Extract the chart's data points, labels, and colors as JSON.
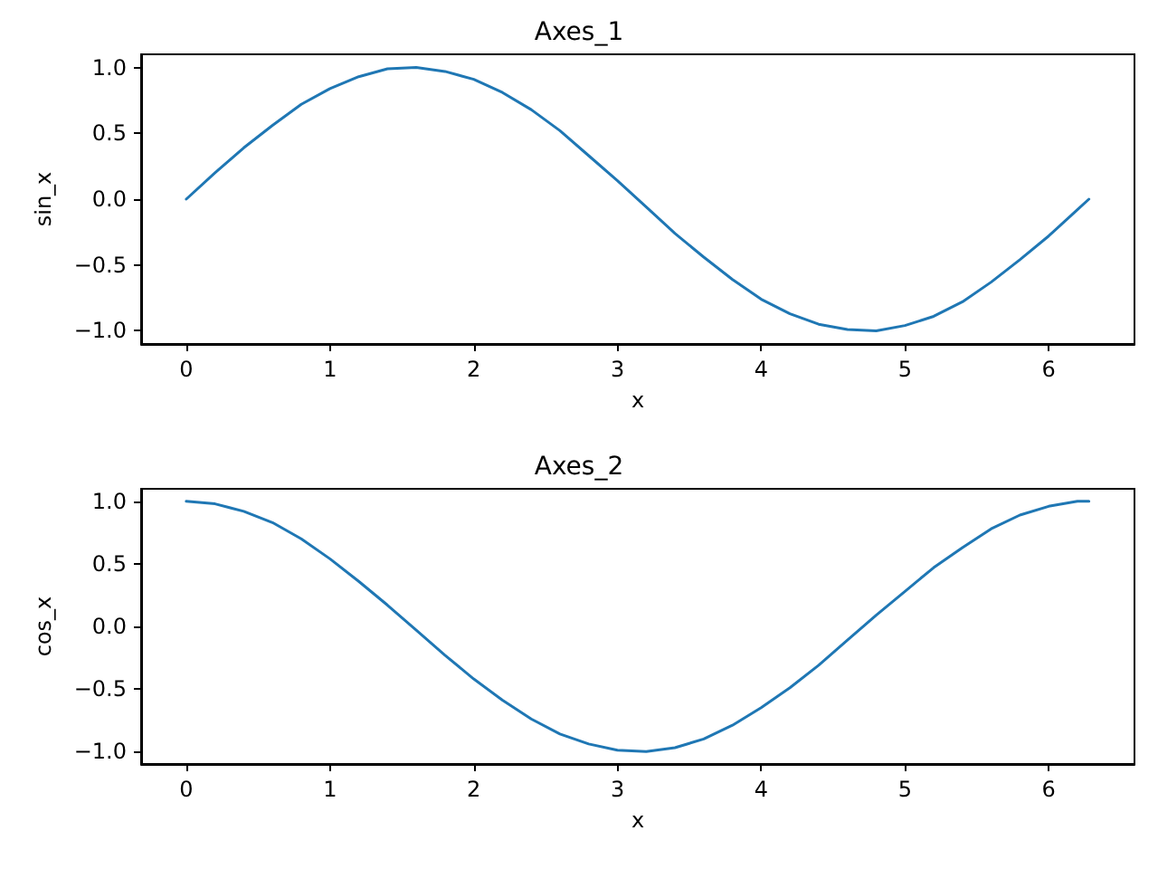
{
  "chart_data": [
    {
      "type": "line",
      "title": "Axes_1",
      "xlabel": "x",
      "ylabel": "sin_x",
      "x": [
        0,
        0.2,
        0.4,
        0.6,
        0.8,
        1.0,
        1.2,
        1.4,
        1.6,
        1.8,
        2.0,
        2.2,
        2.4,
        2.6,
        2.8,
        3.0,
        3.2,
        3.4,
        3.6,
        3.8,
        4.0,
        4.2,
        4.4,
        4.6,
        4.8,
        5.0,
        5.2,
        5.4,
        5.6,
        5.8,
        6.0,
        6.2,
        6.28
      ],
      "series": [
        {
          "color": "#1f77b4",
          "values": [
            0,
            0.2,
            0.39,
            0.56,
            0.72,
            0.84,
            0.93,
            0.99,
            1.0,
            0.97,
            0.91,
            0.81,
            0.68,
            0.52,
            0.33,
            0.14,
            -0.06,
            -0.26,
            -0.44,
            -0.61,
            -0.76,
            -0.87,
            -0.95,
            -0.99,
            -1.0,
            -0.96,
            -0.89,
            -0.78,
            -0.63,
            -0.46,
            -0.28,
            -0.08,
            0
          ]
        }
      ],
      "xlim": [
        -0.314,
        6.597
      ],
      "xticks": [
        0,
        1,
        2,
        3,
        4,
        5,
        6
      ],
      "ylim": [
        -1.1,
        1.1
      ],
      "yticks": [
        {
          "value": -1,
          "label": "−1.0"
        },
        {
          "value": -0.5,
          "label": "−0.5"
        },
        {
          "value": 0,
          "label": "0.0"
        },
        {
          "value": 0.5,
          "label": "0.5"
        },
        {
          "value": 1,
          "label": "1.0"
        }
      ],
      "grid": false,
      "marker": "none",
      "line_style": "solid"
    },
    {
      "type": "line",
      "title": "Axes_2",
      "xlabel": "x",
      "ylabel": "cos_x",
      "x": [
        0,
        0.2,
        0.4,
        0.6,
        0.8,
        1.0,
        1.2,
        1.4,
        1.6,
        1.8,
        2.0,
        2.2,
        2.4,
        2.6,
        2.8,
        3.0,
        3.2,
        3.4,
        3.6,
        3.8,
        4.0,
        4.2,
        4.4,
        4.6,
        4.8,
        5.0,
        5.2,
        5.4,
        5.6,
        5.8,
        6.0,
        6.2,
        6.28
      ],
      "series": [
        {
          "color": "#1f77b4",
          "values": [
            1,
            0.98,
            0.92,
            0.83,
            0.7,
            0.54,
            0.36,
            0.17,
            -0.03,
            -0.23,
            -0.42,
            -0.59,
            -0.74,
            -0.86,
            -0.94,
            -0.99,
            -1.0,
            -0.97,
            -0.9,
            -0.79,
            -0.65,
            -0.49,
            -0.31,
            -0.11,
            0.09,
            0.28,
            0.47,
            0.63,
            0.78,
            0.89,
            0.96,
            1.0,
            1.0
          ]
        }
      ],
      "xlim": [
        -0.314,
        6.597
      ],
      "xticks": [
        0,
        1,
        2,
        3,
        4,
        5,
        6
      ],
      "ylim": [
        -1.1,
        1.1
      ],
      "yticks": [
        {
          "value": -1,
          "label": "−1.0"
        },
        {
          "value": -0.5,
          "label": "−0.5"
        },
        {
          "value": 0,
          "label": "0.0"
        },
        {
          "value": 0.5,
          "label": "0.5"
        },
        {
          "value": 1,
          "label": "1.0"
        }
      ],
      "grid": false,
      "marker": "none",
      "line_style": "solid"
    }
  ]
}
